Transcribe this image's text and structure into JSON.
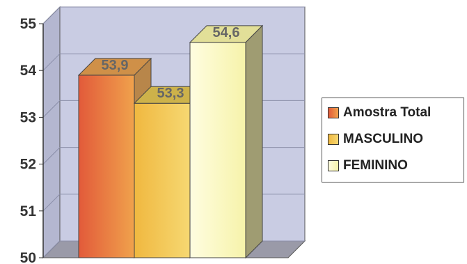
{
  "chart_data": {
    "type": "bar",
    "style": "3d-column",
    "ylim": [
      50,
      55
    ],
    "yticks": [
      "50",
      "51",
      "52",
      "53",
      "54",
      "55"
    ],
    "grid": true,
    "legend_position": "right",
    "series": [
      {
        "name": "Amostra Total",
        "value": 53.9,
        "label": "53,9",
        "color": "#e07a3a"
      },
      {
        "name": "MASCULINO",
        "value": 53.3,
        "label": "53,3",
        "color": "#e9c04a"
      },
      {
        "name": "FEMININO",
        "value": 54.6,
        "label": "54,6",
        "color": "#fbf8bf"
      }
    ],
    "colors": {
      "wall": "#c9cce3",
      "gridline": "#8a8ea8",
      "floor": "#9a9aa8"
    }
  }
}
